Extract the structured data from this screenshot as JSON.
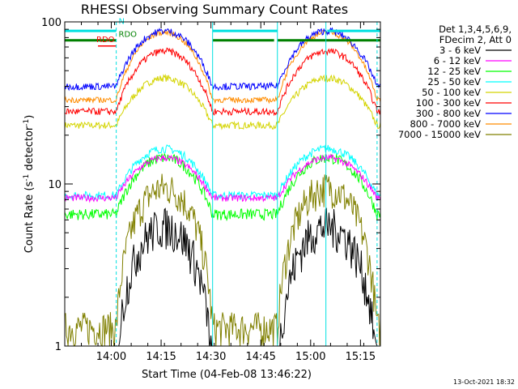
{
  "chart_data": {
    "type": "line",
    "title": "RHESSI Observing Summary Count Rates",
    "xlabel": "Start Time (04-Feb-08 13:46:22)",
    "ylabel_main": "Count Rate (s",
    "ylabel_sup1": "-1",
    "ylabel_mid": " detector",
    "ylabel_sup2": "-1",
    "ylabel_end": ")",
    "y_scale": "log",
    "ylim": [
      1,
      100
    ],
    "xlim_minutes_after_1346": [
      0,
      95
    ],
    "x_ticks": [
      {
        "label": "14:00",
        "minute": 14
      },
      {
        "label": "14:15",
        "minute": 29
      },
      {
        "label": "14:30",
        "minute": 44
      },
      {
        "label": "14:45",
        "minute": 59
      },
      {
        "label": "15:00",
        "minute": 74
      },
      {
        "label": "15:15",
        "minute": 89
      }
    ],
    "y_ticks": [
      {
        "label": "1",
        "value": 1
      },
      {
        "label": "10",
        "value": 10
      },
      {
        "label": "100",
        "value": 100
      }
    ],
    "legend_header": [
      "Det 1,3,4,5,6,9,",
      "FDecim 2, Att 0"
    ],
    "legend_position": "right",
    "series": [
      {
        "name": "3 - 6 keV",
        "color": "#000000"
      },
      {
        "name": "6 - 12 keV",
        "color": "#ff00ff"
      },
      {
        "name": "12 - 25 keV",
        "color": "#00ff00"
      },
      {
        "name": "25 - 50 keV",
        "color": "#00ffff"
      },
      {
        "name": "50 - 100 keV",
        "color": "#d4d400"
      },
      {
        "name": "100 - 300 keV",
        "color": "#ff0000"
      },
      {
        "name": "300 - 800 keV",
        "color": "#0000ff"
      },
      {
        "name": "800 - 7000 keV",
        "color": "#ff8c00"
      },
      {
        "name": "7000 - 15000 keV",
        "color": "#808000"
      }
    ],
    "flags": [
      {
        "label": "N",
        "color": "#00e0e0"
      },
      {
        "label": "RDO",
        "color": "#008000"
      },
      {
        "label": "RDO",
        "color": "#ff0000"
      }
    ],
    "timestamp": "13-Oct-2021 18:32"
  }
}
